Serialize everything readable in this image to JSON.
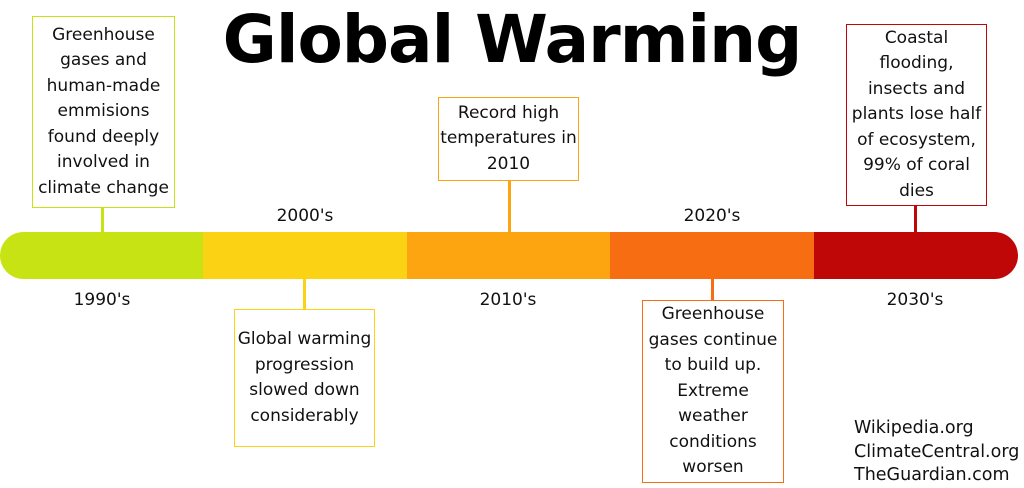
{
  "title": "Global Warming",
  "timeline": {
    "segments": [
      {
        "period": "1990's",
        "color": "#c7e314"
      },
      {
        "period": "2000's",
        "color": "#fcd314"
      },
      {
        "period": "2010's",
        "color": "#fca510"
      },
      {
        "period": "2020's",
        "color": "#f76d12"
      },
      {
        "period": "2030's",
        "color": "#c00707"
      }
    ],
    "events": [
      {
        "period": "1990's",
        "text": "Greenhouse gases and human-made emmisions found deeply involved in climate change",
        "border_color": "#c7e314"
      },
      {
        "period": "2000's",
        "text": "Global warming progression slowed down considerably",
        "border_color": "#fcd314"
      },
      {
        "period": "2010's",
        "text": "Record high temperatures in 2010",
        "border_color": "#fca510"
      },
      {
        "period": "2020's",
        "text": "Greenhouse gases continue to build up. Extreme weather conditions worsen",
        "border_color": "#f76d12"
      },
      {
        "period": "2030's",
        "text": "Coastal flooding, insects and plants lose half of ecosystem, 99% of coral dies",
        "border_color": "#c00707"
      }
    ]
  },
  "sources": [
    "Wikipedia.org",
    "ClimateCentral.org",
    "TheGuardian.com"
  ]
}
